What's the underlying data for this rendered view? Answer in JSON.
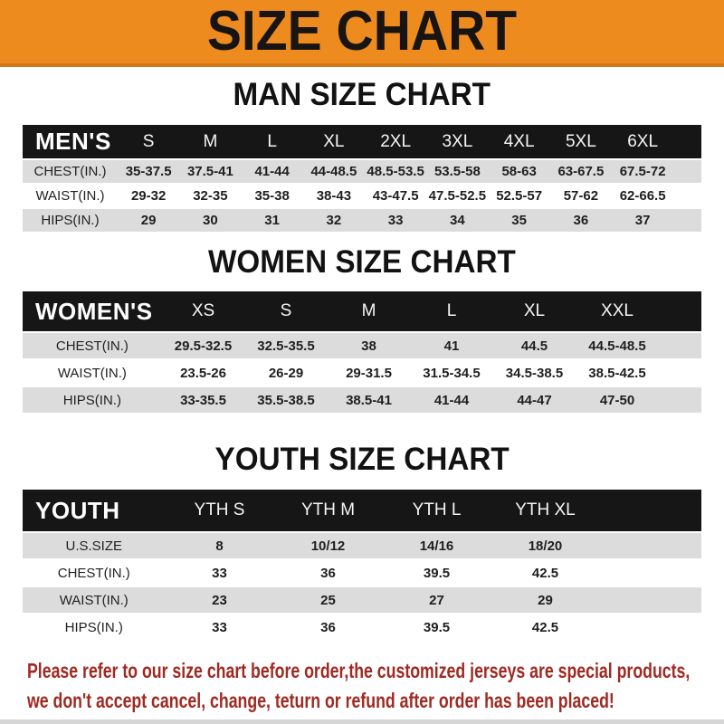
{
  "banner": {
    "title": "SIZE CHART"
  },
  "colors": {
    "banner_orange": "#EE8B1F",
    "banner_border": "#D2791B",
    "header_bar_black": "#161616",
    "row_gray": "#DCDCDC",
    "footer_red": "#A02A22"
  },
  "men": {
    "heading": "MAN SIZE CHART",
    "label": "MEN'S",
    "cols": [
      "S",
      "M",
      "L",
      "XL",
      "2XL",
      "3XL",
      "4XL",
      "5XL",
      "6XL"
    ],
    "rows": [
      {
        "label": "CHEST(IN.)",
        "values": [
          "35-37.5",
          "37.5-41",
          "41-44",
          "44-48.5",
          "48.5-53.5",
          "53.5-58",
          "58-63",
          "63-67.5",
          "67.5-72"
        ]
      },
      {
        "label": "WAIST(IN.)",
        "values": [
          "29-32",
          "32-35",
          "35-38",
          "38-43",
          "43-47.5",
          "47.5-52.5",
          "52.5-57",
          "57-62",
          "62-66.5"
        ]
      },
      {
        "label": "HIPS(IN.)",
        "values": [
          "29",
          "30",
          "31",
          "32",
          "33",
          "34",
          "35",
          "36",
          "37"
        ]
      }
    ]
  },
  "women": {
    "heading": "WOMEN SIZE CHART",
    "label": "WOMEN'S",
    "cols": [
      "XS",
      "S",
      "M",
      "L",
      "XL",
      "XXL"
    ],
    "rows": [
      {
        "label": "CHEST(IN.)",
        "values": [
          "29.5-32.5",
          "32.5-35.5",
          "38",
          "41",
          "44.5",
          "44.5-48.5"
        ]
      },
      {
        "label": "WAIST(IN.)",
        "values": [
          "23.5-26",
          "26-29",
          "29-31.5",
          "31.5-34.5",
          "34.5-38.5",
          "38.5-42.5"
        ]
      },
      {
        "label": "HIPS(IN.)",
        "values": [
          "33-35.5",
          "35.5-38.5",
          "38.5-41",
          "41-44",
          "44-47",
          "47-50"
        ]
      }
    ]
  },
  "youth": {
    "heading": "YOUTH SIZE CHART",
    "label": "YOUTH",
    "cols": [
      "YTH S",
      "YTH M",
      "YTH L",
      "YTH XL"
    ],
    "rows": [
      {
        "label": "U.S.SIZE",
        "values": [
          "8",
          "10/12",
          "14/16",
          "18/20"
        ]
      },
      {
        "label": "CHEST(IN.)",
        "values": [
          "33",
          "36",
          "39.5",
          "42.5"
        ]
      },
      {
        "label": "WAIST(IN.)",
        "values": [
          "23",
          "25",
          "27",
          "29"
        ]
      },
      {
        "label": "HIPS(IN.)",
        "values": [
          "33",
          "36",
          "39.5",
          "42.5"
        ]
      }
    ]
  },
  "footer": {
    "line1": "Please refer to our size chart before order,the customized jerseys are special products,",
    "line2": "we don't accept cancel, change, teturn or refund after order has been placed!"
  }
}
